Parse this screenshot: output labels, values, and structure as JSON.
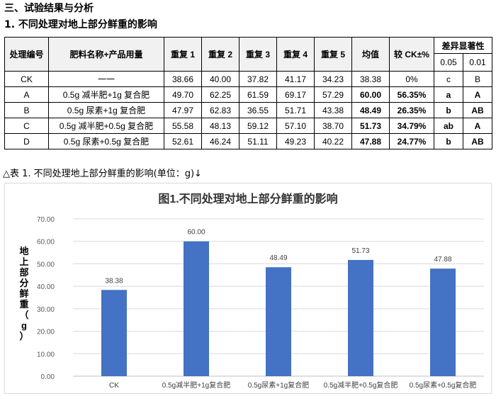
{
  "heading": "三、试验结果与分析",
  "subheading": "1.  不同处理对地上部分鲜重的影响",
  "table": {
    "headers": [
      "处理编号",
      "肥料名称+产品用量",
      "重复 1",
      "重复 2",
      "重复 3",
      "重复 4",
      "重复 5",
      "均值",
      "较 CK±%",
      "差异显著性"
    ],
    "sig_headers": [
      "0.05",
      "0.01"
    ],
    "rows": [
      {
        "id": "CK",
        "name": "一一",
        "r1": "38.66",
        "r2": "40.00",
        "r3": "37.82",
        "r4": "41.17",
        "r5": "34.23",
        "mean": "38.38",
        "pct": "0%",
        "s05": "c",
        "s01": "B"
      },
      {
        "id": "A",
        "name": "0.5g 减半肥+1g 复合肥",
        "r1": "49.70",
        "r2": "62.25",
        "r3": "61.59",
        "r4": "69.17",
        "r5": "57.29",
        "mean": "60.00",
        "pct": "56.35%",
        "s05": "a",
        "s01": "A"
      },
      {
        "id": "B",
        "name": "0.5g 尿素+1g 复合肥",
        "r1": "47.97",
        "r2": "62.83",
        "r3": "36.55",
        "r4": "51.71",
        "r5": "43.38",
        "mean": "48.49",
        "pct": "26.35%",
        "s05": "b",
        "s01": "AB"
      },
      {
        "id": "C",
        "name": "0.5g 减半肥+0.5g 复合肥",
        "r1": "55.58",
        "r2": "48.13",
        "r3": "59.12",
        "r4": "57.10",
        "r5": "38.70",
        "mean": "51.73",
        "pct": "34.79%",
        "s05": "ab",
        "s01": "A"
      },
      {
        "id": "D",
        "name": "0.5g 尿素+0.5g 复合肥",
        "r1": "52.61",
        "r2": "46.24",
        "r3": "51.11",
        "r4": "49.23",
        "r5": "40.22",
        "mean": "47.88",
        "pct": "24.77%",
        "s05": "b",
        "s01": "AB"
      }
    ]
  },
  "caption": "△表 1. 不同处理地上部分鲜重的影响(单位：g)↓",
  "chart_data": {
    "type": "bar",
    "title": "图1.不同处理对地上部分鲜重的影响",
    "ylabel": "地上部分鲜重（g）",
    "xlabel": "",
    "categories": [
      "CK",
      "0.5g减半肥+1g复合肥",
      "0.5g尿素+1g复合肥",
      "0.5g减半肥+0.5g复合肥",
      "0.5g尿素+0.5g复合肥"
    ],
    "values": [
      38.38,
      60.0,
      48.49,
      51.73,
      47.88
    ],
    "data_labels": [
      "38.38",
      "60.00",
      "48.49",
      "51.73",
      "47.88"
    ],
    "yticks": [
      "0.00",
      "10.00",
      "20.00",
      "30.00",
      "40.00",
      "50.00",
      "60.00",
      "70.00"
    ],
    "ylim": [
      0,
      70
    ],
    "grid": true,
    "bar_color": "#4472c4"
  }
}
